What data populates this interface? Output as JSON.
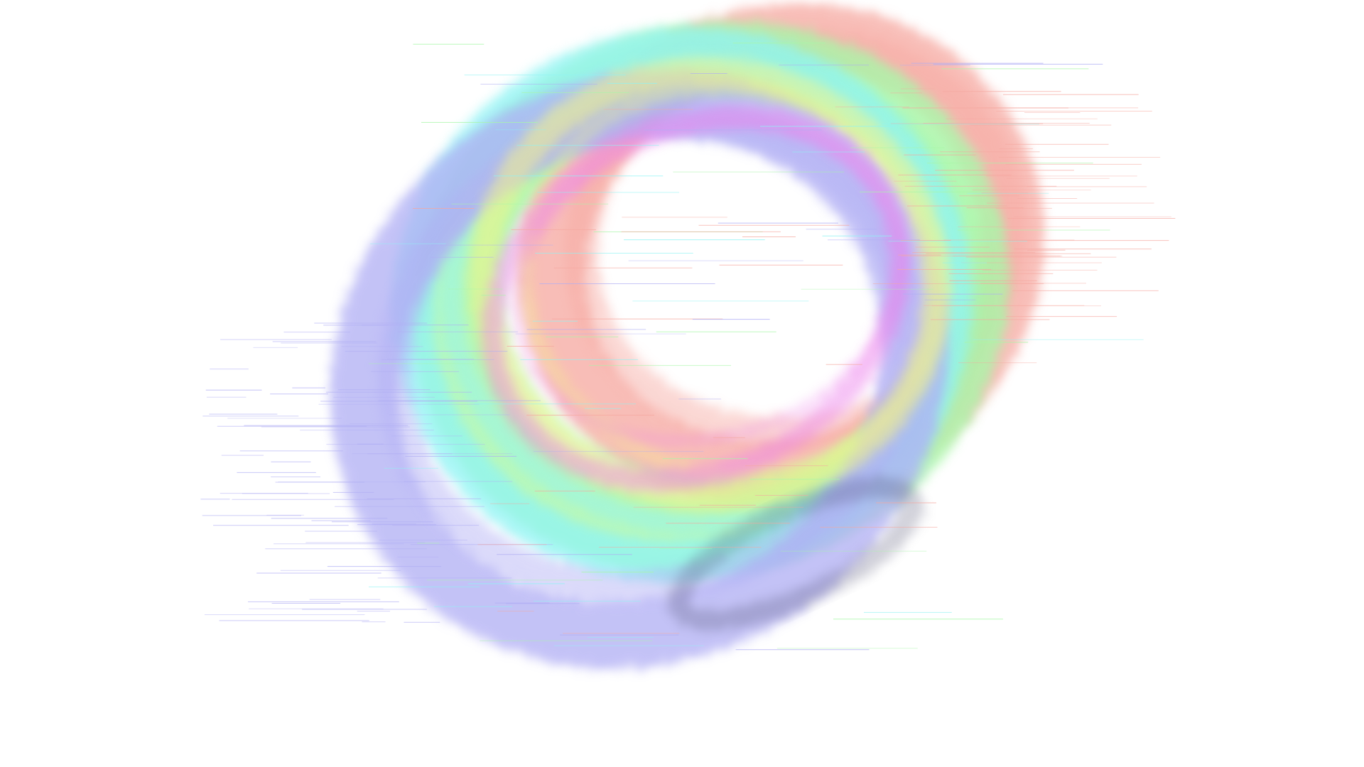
{
  "artwork": {
    "subject": "swirling-ring-abstract",
    "background_color": "#ffffff",
    "palette": {
      "red": "#f6a8a0",
      "green": "#a8f7a8",
      "cyan": "#8ff4f4",
      "blue": "#b0aef4",
      "yellow": "#f4f48a",
      "magenta": "#ec7fec",
      "dark": "#4a4a6a"
    },
    "rings": [
      {
        "name": "red-ring",
        "color": "red"
      },
      {
        "name": "green-ring",
        "color": "green"
      },
      {
        "name": "cyan-ring",
        "color": "cyan"
      },
      {
        "name": "blue-ring",
        "color": "blue"
      },
      {
        "name": "yellow-ring",
        "color": "yellow"
      },
      {
        "name": "magenta-ring",
        "color": "magenta"
      }
    ]
  }
}
